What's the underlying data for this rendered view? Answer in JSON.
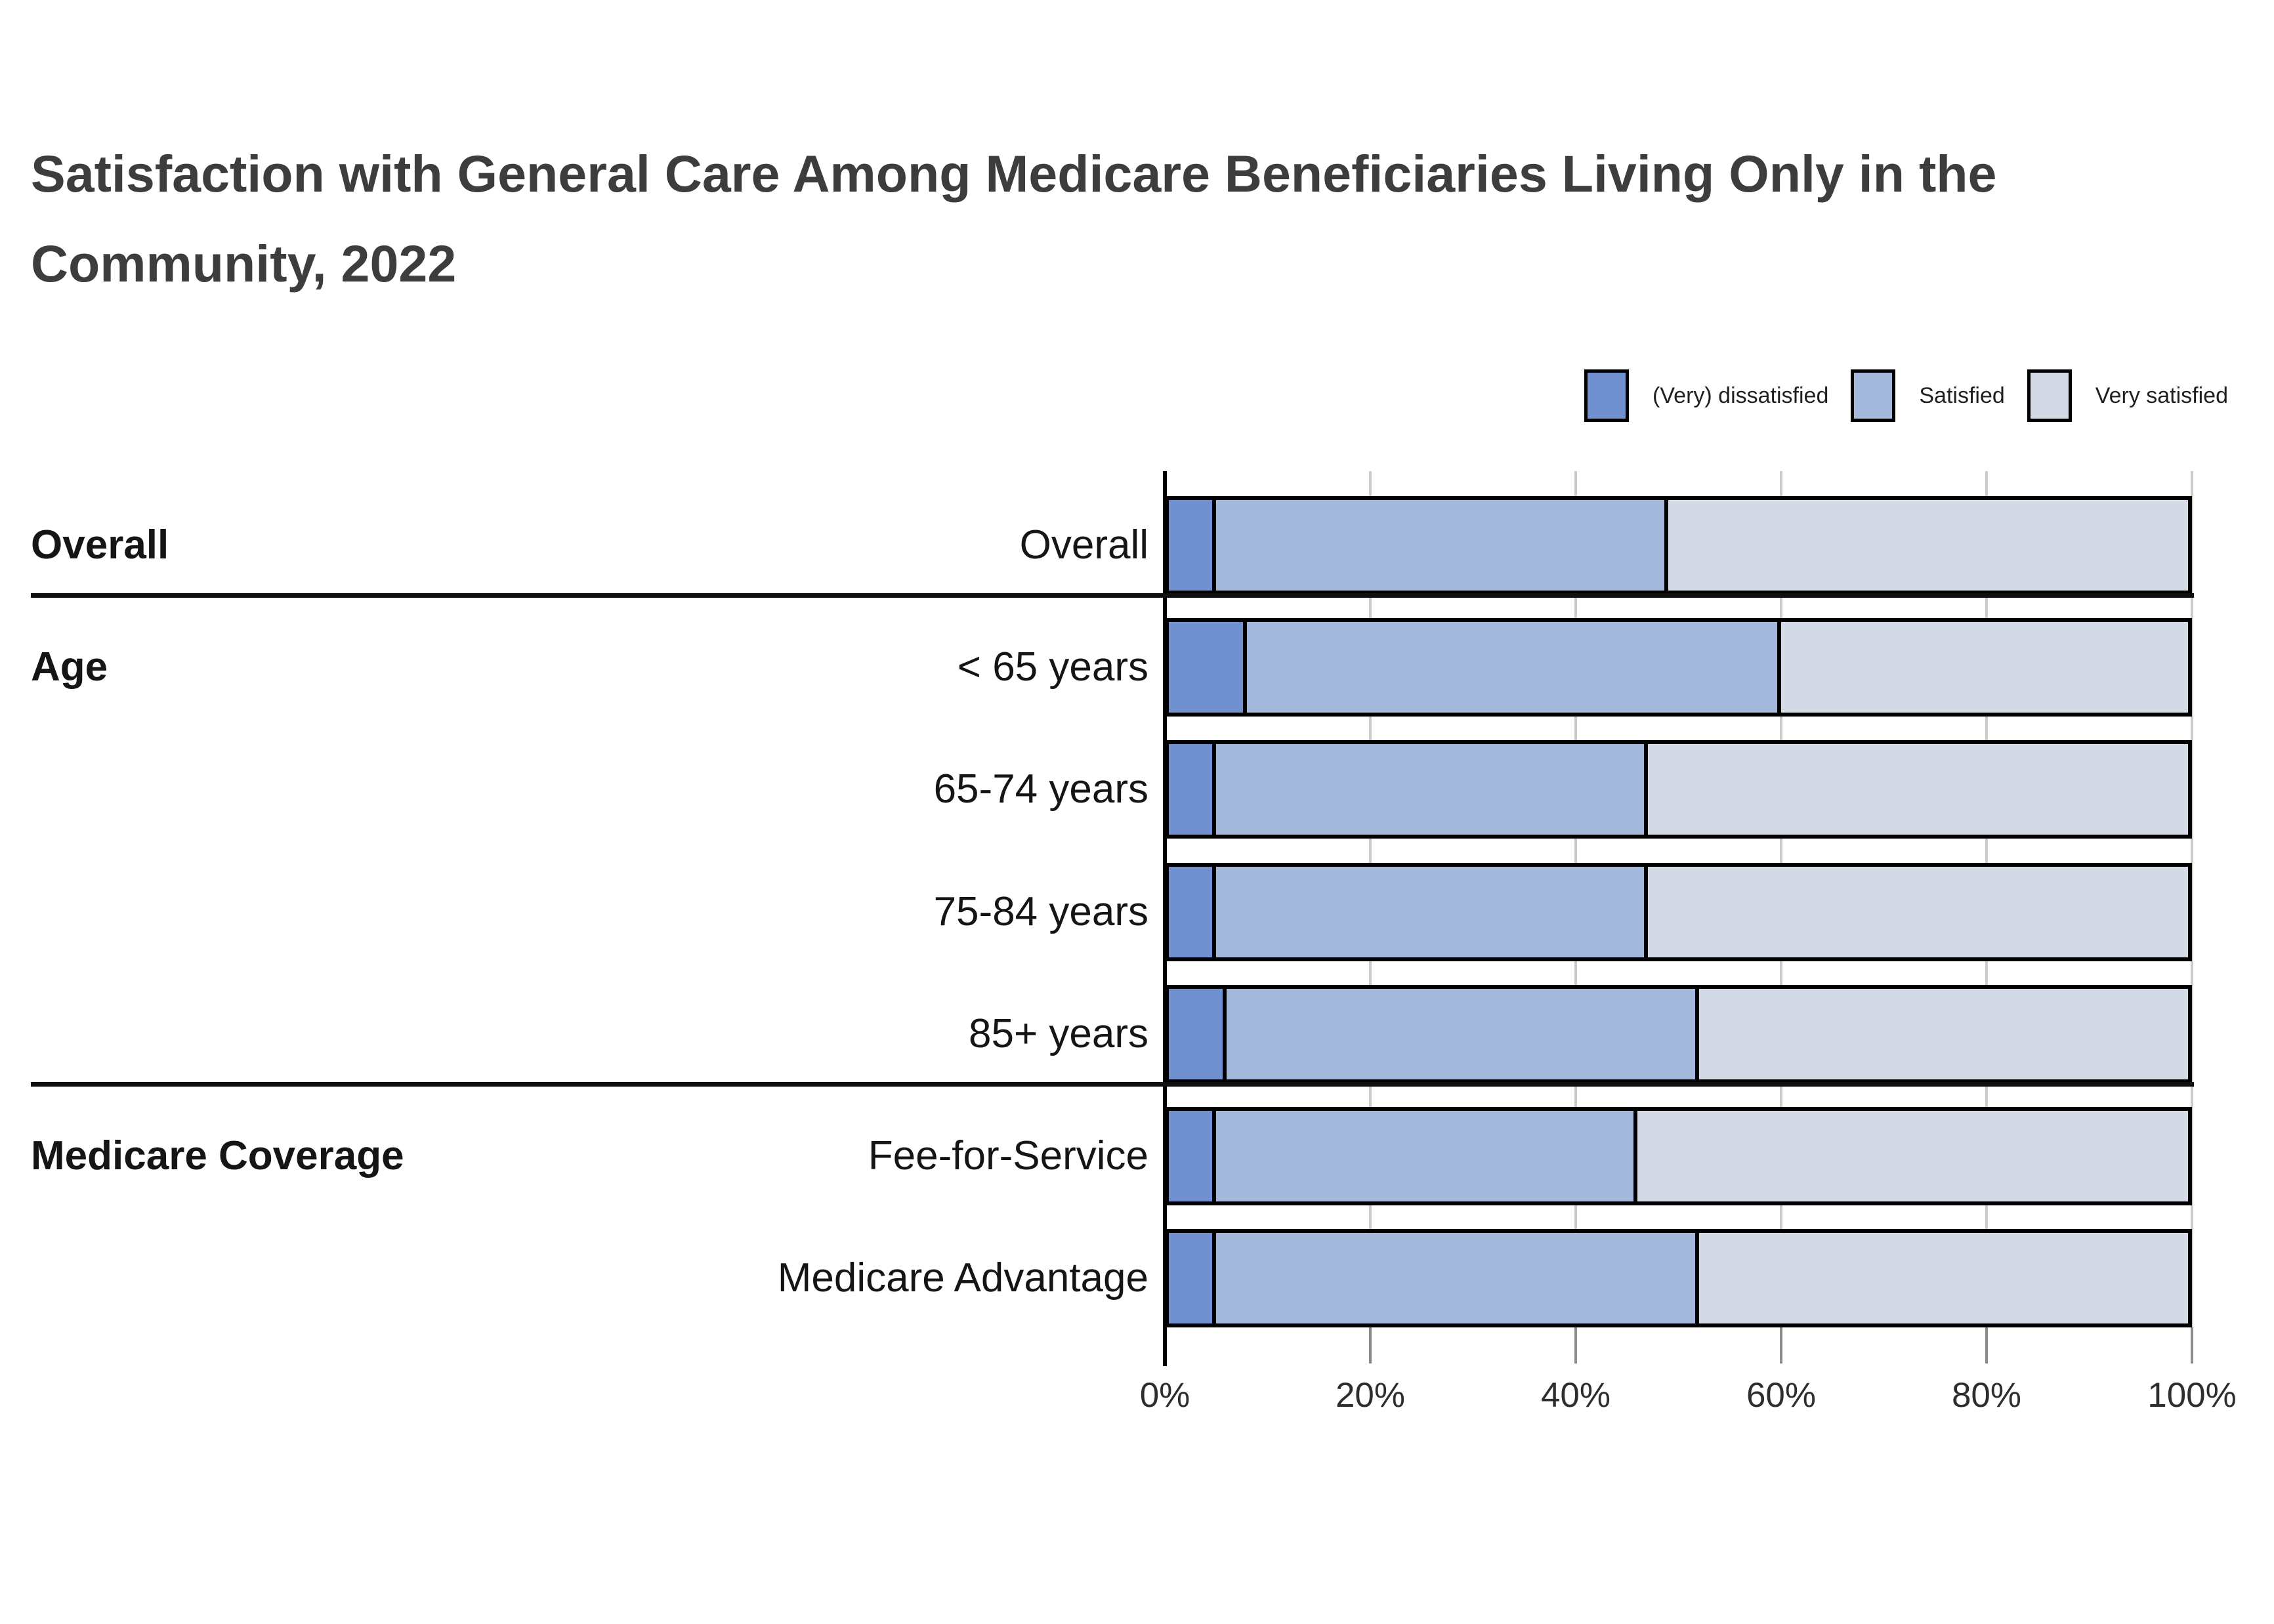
{
  "title": "Satisfaction with General Care Among Medicare Beneficiaries Living Only in the Community, 2022",
  "colors": {
    "dissatisfied": "#7090cf",
    "satisfied": "#a4b8dc",
    "very_satisfied": "#d3dae6",
    "bar_border": "#000000",
    "gridline": "#cbcbcb",
    "title_text": "#3d3d3d"
  },
  "legend": {
    "items": [
      {
        "label": "(Very) dissatisfied",
        "color": "#7090cf"
      },
      {
        "label": "Satisfied",
        "color": "#a4b8dc"
      },
      {
        "label": "Very satisfied",
        "color": "#d3dae6"
      }
    ]
  },
  "chart_data": {
    "type": "bar",
    "orientation": "horizontal",
    "stacked": true,
    "unit": "percent",
    "title": "Satisfaction with General Care Among Medicare Beneficiaries Living Only in the Community, 2022",
    "xlabel": "",
    "ylabel": "",
    "x_range": [
      0,
      100
    ],
    "x_ticks": [
      "0%",
      "20%",
      "40%",
      "60%",
      "80%",
      "100%"
    ],
    "gridlines": true,
    "legend_position": "top-right",
    "categories": [
      "Overall",
      "< 65 years",
      "65-74 years",
      "75-84 years",
      "85+ years",
      "Fee-for-Service",
      "Medicare Advantage"
    ],
    "groups": [
      {
        "label": "Overall",
        "start_row": 0,
        "end_row": 0
      },
      {
        "label": "Age",
        "start_row": 1,
        "end_row": 4
      },
      {
        "label": "Medicare Coverage",
        "start_row": 5,
        "end_row": 6
      }
    ],
    "series": [
      {
        "name": "(Very) dissatisfied",
        "values": [
          5,
          8,
          5,
          5,
          6,
          5,
          5
        ]
      },
      {
        "name": "Satisfied",
        "values": [
          44,
          52,
          42,
          42,
          46,
          41,
          47
        ]
      },
      {
        "name": "Very satisfied",
        "values": [
          51,
          40,
          53,
          53,
          48,
          54,
          48
        ]
      }
    ]
  }
}
